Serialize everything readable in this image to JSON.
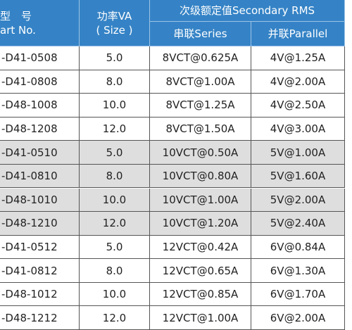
{
  "header": {
    "part_no": [
      "型　号",
      "art No."
    ],
    "power": [
      "功率VA",
      "( Size )"
    ],
    "secondary": "次级额定值Secondary RMS",
    "series": "串联Series",
    "parallel": "并联Parallel"
  },
  "rows": [
    [
      "-D41-0508",
      "5.0",
      "8VCT@0.625A",
      "4V@1.25A"
    ],
    [
      "-D41-0808",
      "8.0",
      "8VCT@1.00A",
      "4V@2.00A"
    ],
    [
      "-D48-1008",
      "10.0",
      "8VCT@1.25A",
      "4V@2.50A"
    ],
    [
      "-D48-1208",
      "12.0",
      "8VCT@1.50A",
      "4V@3.00A"
    ],
    [
      "-D41-0510",
      "5.0",
      "10VCT@0.50A",
      "5V@1.00A"
    ],
    [
      "-D41-0810",
      "8.0",
      "10VCT@0.80A",
      "5V@1.60A"
    ],
    [
      "-D48-1010",
      "10.0",
      "10VCT@1.00A",
      "5V@2.00A"
    ],
    [
      "-D48-1210",
      "12.0",
      "10VCT@1.20A",
      "5V@2.40A"
    ],
    [
      "-D41-0512",
      "5.0",
      "12VCT@0.42A",
      "6V@0.84A"
    ],
    [
      "-D41-0812",
      "8.0",
      "12VCT@0.65A",
      "6V@1.30A"
    ],
    [
      "-D48-1012",
      "10.0",
      "12VCT@0.85A",
      "6V@1.70A"
    ],
    [
      "-D48-1212",
      "12.0",
      "12VCT@1.00A",
      "6V@2.00A"
    ]
  ]
}
